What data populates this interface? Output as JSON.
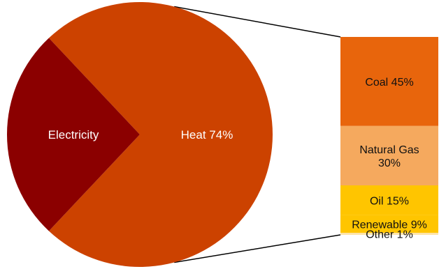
{
  "chart_data": {
    "type": "bar-of-pie",
    "pie": {
      "slices": [
        {
          "label": "Heat 74%",
          "value": 74,
          "color": "#cc4200"
        },
        {
          "label": "Electricity",
          "value": 26,
          "color": "#8b0000"
        }
      ]
    },
    "breakdown": {
      "of": "Heat",
      "segments": [
        {
          "label": "Coal 45%",
          "value": 45,
          "color": "#e8650c"
        },
        {
          "label": "Natural Gas 30%",
          "lines": [
            "Natural Gas",
            "30%"
          ],
          "value": 30,
          "color": "#f5a95e"
        },
        {
          "label": "Oil 15%",
          "value": 15,
          "color": "#ffc500"
        },
        {
          "label": "Renewable 9%",
          "value": 9,
          "color": "#ffc500"
        },
        {
          "label": "Other 1%",
          "value": 1,
          "color": "#fde3a7"
        }
      ]
    }
  }
}
